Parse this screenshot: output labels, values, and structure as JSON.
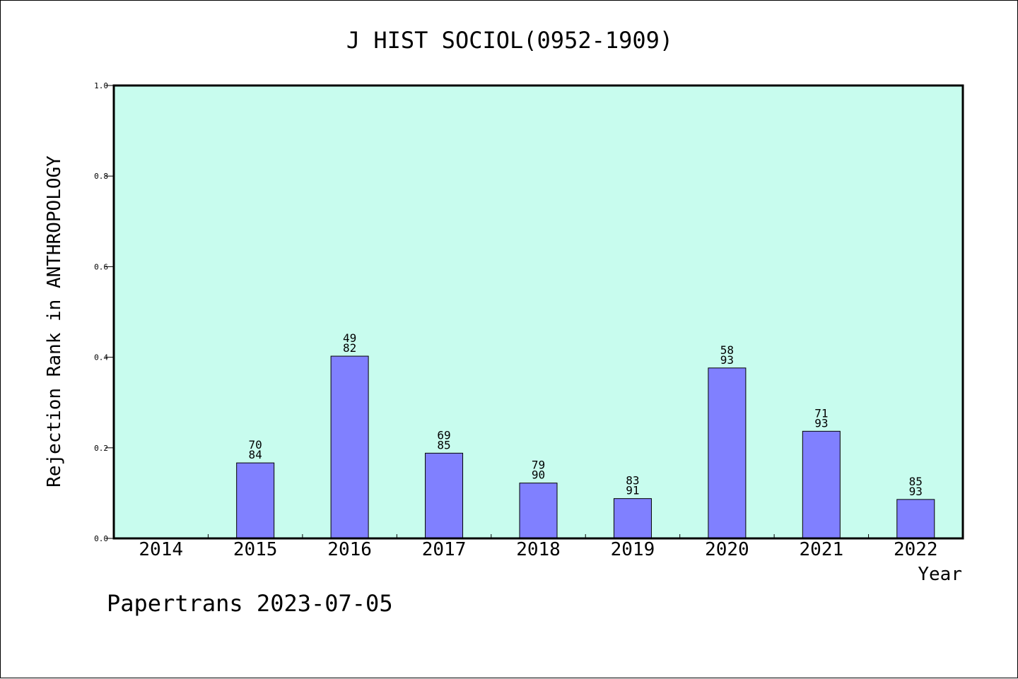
{
  "chart_data": {
    "type": "bar",
    "title": "J HIST SOCIOL(0952-1909)",
    "xlabel": "Year",
    "ylabel": "Rejection Rank in ANTHROPOLOGY",
    "ylim": [
      0,
      1.0
    ],
    "yticks": [
      "0.0",
      "0.2",
      "0.4",
      "0.6",
      "0.8",
      "1.0"
    ],
    "categories": [
      "2014",
      "2015",
      "2016",
      "2017",
      "2018",
      "2019",
      "2020",
      "2021",
      "2022"
    ],
    "values": [
      null,
      0.1667,
      0.4024,
      0.1882,
      0.1222,
      0.0879,
      0.3763,
      0.2366,
      0.086
    ],
    "bar_labels": [
      null,
      {
        "rank": "70",
        "total": "84"
      },
      {
        "rank": "49",
        "total": "82"
      },
      {
        "rank": "69",
        "total": "85"
      },
      {
        "rank": "79",
        "total": "90"
      },
      {
        "rank": "83",
        "total": "91"
      },
      {
        "rank": "58",
        "total": "93"
      },
      {
        "rank": "71",
        "total": "93"
      },
      {
        "rank": "85",
        "total": "93"
      }
    ],
    "grid": false,
    "colors": {
      "plot_background": "#c8fcee",
      "bar_fill": "#8080ff",
      "bar_stroke": "#000000"
    }
  },
  "footer": "Papertrans 2023-07-05"
}
